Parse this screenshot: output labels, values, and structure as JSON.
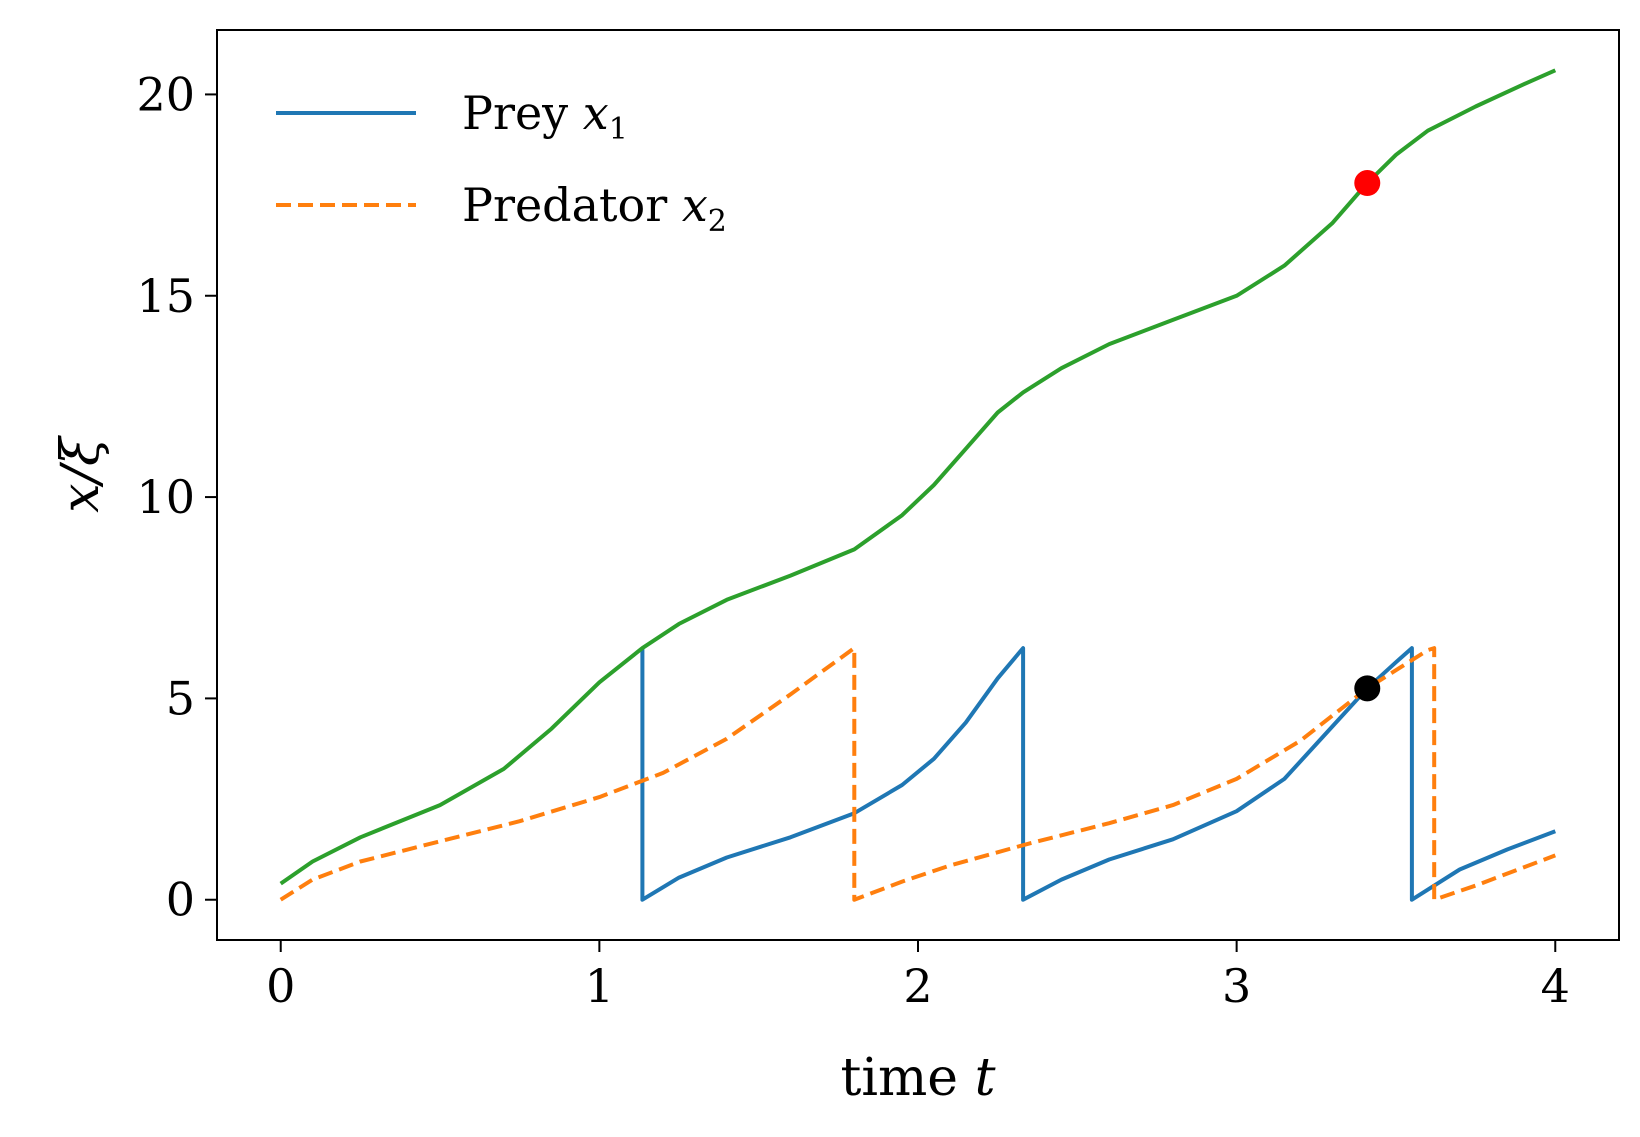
{
  "chart_data": {
    "type": "line",
    "title": "",
    "xlabel": {
      "text": "time ",
      "var": "t"
    },
    "ylabel": "x/ξ",
    "xlim": [
      -0.2,
      4.2
    ],
    "ylim": [
      -1.0,
      21.6
    ],
    "xticks": [
      "0",
      "1",
      "2",
      "3",
      "4"
    ],
    "yticks": [
      "0",
      "5",
      "10",
      "15",
      "20"
    ],
    "grid": false,
    "legend_position": "upper-left",
    "series": [
      {
        "name": "Prey",
        "var": "x",
        "sub": "1",
        "color": "#1f77b4",
        "style": "solid",
        "points": [
          [
            1.135,
            6.25
          ],
          [
            1.135,
            0.0
          ],
          [
            1.25,
            0.55
          ],
          [
            1.4,
            1.05
          ],
          [
            1.6,
            1.55
          ],
          [
            1.8,
            2.15
          ],
          [
            1.95,
            2.85
          ],
          [
            2.05,
            3.5
          ],
          [
            2.15,
            4.4
          ],
          [
            2.25,
            5.5
          ],
          [
            2.33,
            6.25
          ],
          [
            2.33,
            0.0
          ],
          [
            2.45,
            0.5
          ],
          [
            2.6,
            1.0
          ],
          [
            2.8,
            1.5
          ],
          [
            3.0,
            2.2
          ],
          [
            3.15,
            3.0
          ],
          [
            3.3,
            4.3
          ],
          [
            3.41,
            5.25
          ],
          [
            3.5,
            5.9
          ],
          [
            3.55,
            6.25
          ],
          [
            3.55,
            0.0
          ],
          [
            3.7,
            0.75
          ],
          [
            3.85,
            1.25
          ],
          [
            4.0,
            1.7
          ]
        ]
      },
      {
        "name": "Predator",
        "var": "x",
        "sub": "2",
        "color": "#ff7f0e",
        "style": "dashed",
        "points": [
          [
            0.0,
            0.0
          ],
          [
            0.1,
            0.5
          ],
          [
            0.25,
            0.95
          ],
          [
            0.5,
            1.45
          ],
          [
            0.75,
            1.95
          ],
          [
            1.0,
            2.55
          ],
          [
            1.2,
            3.15
          ],
          [
            1.4,
            4.0
          ],
          [
            1.6,
            5.1
          ],
          [
            1.8,
            6.25
          ],
          [
            1.8,
            0.0
          ],
          [
            1.95,
            0.45
          ],
          [
            2.1,
            0.85
          ],
          [
            2.35,
            1.4
          ],
          [
            2.6,
            1.9
          ],
          [
            2.8,
            2.35
          ],
          [
            3.0,
            3.0
          ],
          [
            3.2,
            3.95
          ],
          [
            3.41,
            5.25
          ],
          [
            3.6,
            6.2
          ],
          [
            3.62,
            6.25
          ],
          [
            3.62,
            0.0
          ],
          [
            3.75,
            0.35
          ],
          [
            3.9,
            0.8
          ],
          [
            4.0,
            1.1
          ]
        ]
      },
      {
        "name": "",
        "color": "#2ca02c",
        "style": "solid",
        "points": [
          [
            0.0,
            0.4
          ],
          [
            0.1,
            0.95
          ],
          [
            0.25,
            1.55
          ],
          [
            0.5,
            2.35
          ],
          [
            0.7,
            3.25
          ],
          [
            0.85,
            4.25
          ],
          [
            1.0,
            5.4
          ],
          [
            1.135,
            6.25
          ],
          [
            1.25,
            6.85
          ],
          [
            1.4,
            7.45
          ],
          [
            1.6,
            8.05
          ],
          [
            1.8,
            8.7
          ],
          [
            1.95,
            9.55
          ],
          [
            2.05,
            10.3
          ],
          [
            2.15,
            11.2
          ],
          [
            2.25,
            12.1
          ],
          [
            2.33,
            12.6
          ],
          [
            2.45,
            13.2
          ],
          [
            2.6,
            13.8
          ],
          [
            2.8,
            14.4
          ],
          [
            3.0,
            15.0
          ],
          [
            3.15,
            15.75
          ],
          [
            3.3,
            16.8
          ],
          [
            3.41,
            17.8
          ],
          [
            3.5,
            18.5
          ],
          [
            3.6,
            19.1
          ],
          [
            3.75,
            19.7
          ],
          [
            3.9,
            20.25
          ],
          [
            4.0,
            20.6
          ]
        ]
      }
    ],
    "markers": [
      {
        "x": 3.41,
        "y": 17.8,
        "color": "#ff0000"
      },
      {
        "x": 3.41,
        "y": 5.25,
        "color": "#000000"
      }
    ]
  }
}
